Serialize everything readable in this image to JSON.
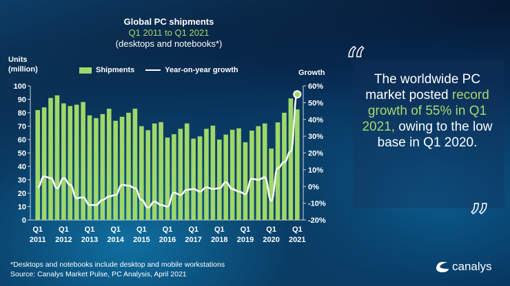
{
  "chart_data": {
    "type": "bar",
    "title": "Global PC shipments",
    "subtitle": "Q1 2011 to Q1 2021",
    "subtitle2": "(desktops and notebooks*)",
    "ylabel": "Units\n(million)",
    "y2label": "Growth",
    "ylim": [
      0,
      100
    ],
    "y2lim": [
      -20,
      60
    ],
    "yticks": [
      "0",
      "10",
      "20",
      "30",
      "40",
      "50",
      "60",
      "70",
      "80",
      "90",
      "100"
    ],
    "y2ticks": [
      "-20%",
      "-10%",
      "0%",
      "10%",
      "20%",
      "30%",
      "40%",
      "50%",
      "60%"
    ],
    "xticks": [
      [
        "Q1",
        "2011"
      ],
      [
        "Q1",
        "2012"
      ],
      [
        "Q1",
        "2013"
      ],
      [
        "Q1",
        "2014"
      ],
      [
        "Q1",
        "2015"
      ],
      [
        "Q1",
        "2016"
      ],
      [
        "Q1",
        "2017"
      ],
      [
        "Q1",
        "2018"
      ],
      [
        "Q1",
        "2019"
      ],
      [
        "Q1",
        "2020"
      ],
      [
        "Q1",
        "2021"
      ]
    ],
    "legend": [
      "Shipments",
      "Year-on-year growth"
    ],
    "legend_position": "top",
    "colors": {
      "bars": "#9fd76a",
      "line": "#ffffff"
    },
    "series": [
      {
        "name": "Shipments",
        "type": "bar",
        "values": [
          82,
          84,
          91,
          93,
          87,
          85,
          86,
          88,
          78,
          76,
          79,
          83,
          74,
          77,
          80,
          83,
          70,
          67,
          72,
          73,
          61.5,
          64,
          68,
          72,
          60.7,
          62.4,
          68,
          70.4,
          60,
          63.7,
          67.3,
          68.4,
          58,
          66.7,
          70,
          72,
          53.3,
          72.8,
          80,
          90.7,
          82.5
        ]
      },
      {
        "name": "Year-on-year growth",
        "type": "line",
        "axis": "right",
        "values": [
          -0.5,
          6,
          5,
          -1,
          5,
          1,
          -7,
          -6.5,
          -11,
          -11,
          -8,
          -6,
          -5,
          1,
          0.5,
          -1,
          -8,
          -12.6,
          -9,
          -11,
          -12,
          -3.7,
          -5,
          -2,
          -1.5,
          -3,
          -0.5,
          -1.5,
          -1,
          2.5,
          -1.5,
          -3,
          -4.5,
          4.6,
          4,
          5.5,
          -8.5,
          11,
          14.5,
          21,
          55
        ]
      }
    ]
  },
  "quote": {
    "part1": "The worldwide PC market posted ",
    "highlight": "record growth of 55% in Q1 2021,",
    "part2": " owing to the low base in Q1 2020.",
    "open_mark": "“",
    "close_mark": "”"
  },
  "footnote": "*Desktops and notebooks include desktop and mobile workstations",
  "source": "Source: Canalys Market Pulse, PC Analysis, April 2021",
  "logo": "canalys"
}
